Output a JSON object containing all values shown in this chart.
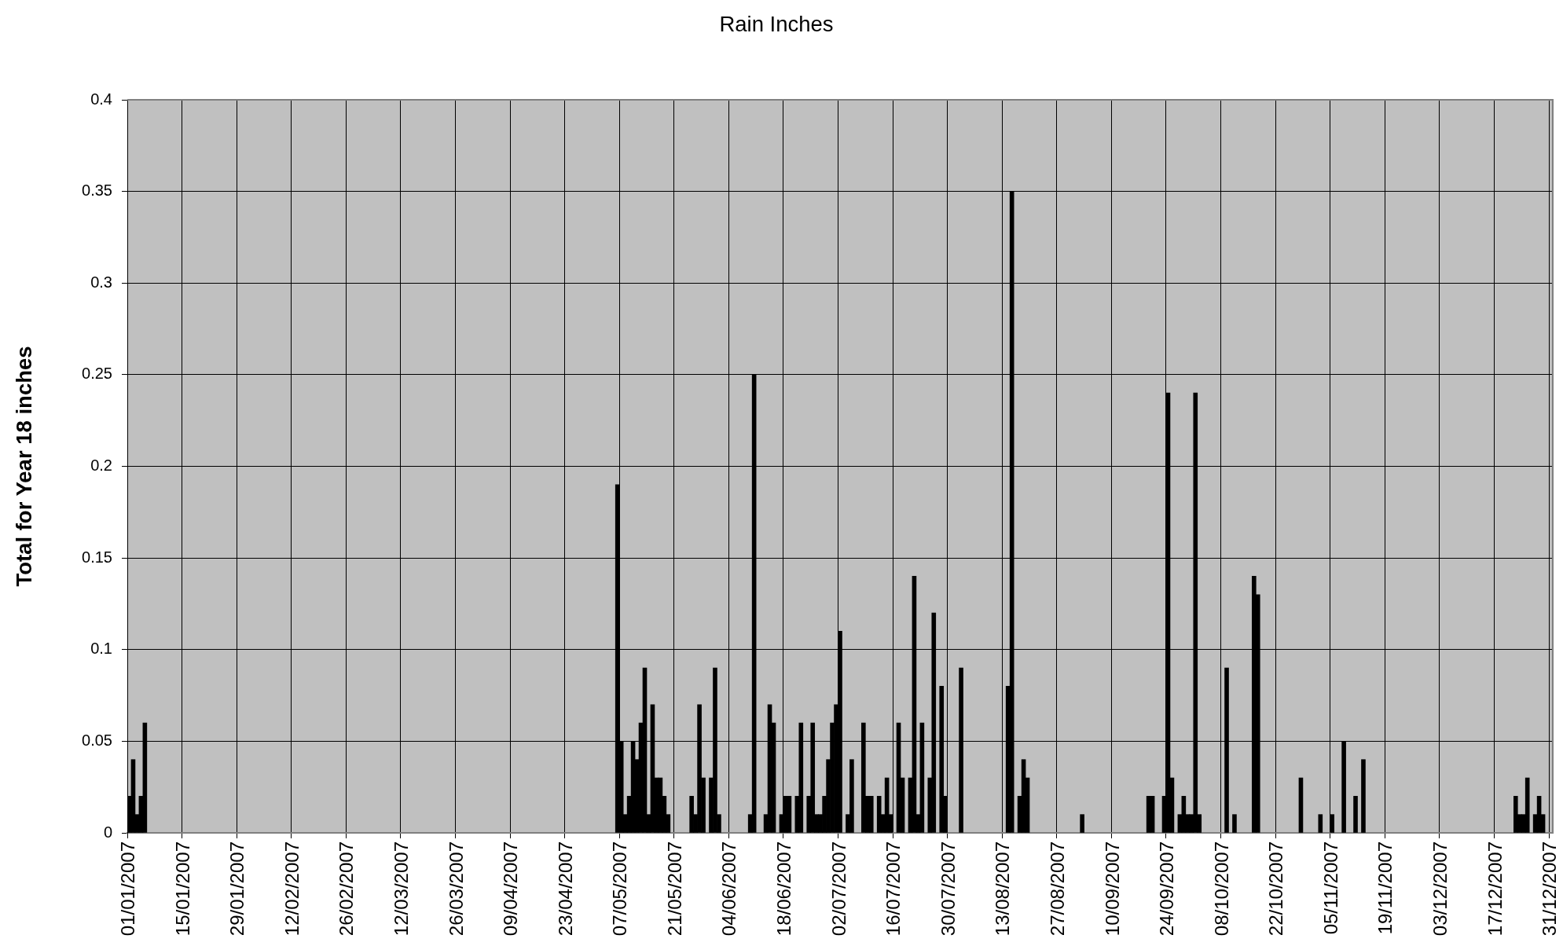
{
  "chart_data": {
    "type": "bar",
    "title": "Rain Inches",
    "ylabel": "Total for Year 18 inches",
    "categories": [
      "01/01/2007",
      null,
      null,
      null,
      null,
      null,
      null,
      null,
      null,
      null,
      null,
      null,
      null,
      null,
      "15/01/2007",
      null,
      null,
      null,
      null,
      null,
      null,
      null,
      null,
      null,
      null,
      null,
      null,
      null,
      "29/01/2007",
      null,
      null,
      null,
      null,
      null,
      null,
      null,
      null,
      null,
      null,
      null,
      null,
      null,
      "12/02/2007",
      null,
      null,
      null,
      null,
      null,
      null,
      null,
      null,
      null,
      null,
      null,
      null,
      null,
      "26/02/2007",
      null,
      null,
      null,
      null,
      null,
      null,
      null,
      null,
      null,
      null,
      null,
      null,
      null,
      "12/03/2007",
      null,
      null,
      null,
      null,
      null,
      null,
      null,
      null,
      null,
      null,
      null,
      null,
      null,
      "26/03/2007",
      null,
      null,
      null,
      null,
      null,
      null,
      null,
      null,
      null,
      null,
      null,
      null,
      null,
      "09/04/2007",
      null,
      null,
      null,
      null,
      null,
      null,
      null,
      null,
      null,
      null,
      null,
      null,
      null,
      "23/04/2007",
      null,
      null,
      null,
      null,
      null,
      null,
      null,
      null,
      null,
      null,
      null,
      null,
      null,
      "07/05/2007",
      null,
      null,
      null,
      null,
      null,
      null,
      null,
      null,
      null,
      null,
      null,
      null,
      null,
      "21/05/2007",
      null,
      null,
      null,
      null,
      null,
      null,
      null,
      null,
      null,
      null,
      null,
      null,
      null,
      "04/06/2007",
      null,
      null,
      null,
      null,
      null,
      null,
      null,
      null,
      null,
      null,
      null,
      null,
      null,
      "18/06/2007",
      null,
      null,
      null,
      null,
      null,
      null,
      null,
      null,
      null,
      null,
      null,
      null,
      null,
      "02/07/2007",
      null,
      null,
      null,
      null,
      null,
      null,
      null,
      null,
      null,
      null,
      null,
      null,
      null,
      "16/07/2007",
      null,
      null,
      null,
      null,
      null,
      null,
      null,
      null,
      null,
      null,
      null,
      null,
      null,
      "30/07/2007",
      null,
      null,
      null,
      null,
      null,
      null,
      null,
      null,
      null,
      null,
      null,
      null,
      null,
      "13/08/2007",
      null,
      null,
      null,
      null,
      null,
      null,
      null,
      null,
      null,
      null,
      null,
      null,
      null,
      "27/08/2007",
      null,
      null,
      null,
      null,
      null,
      null,
      null,
      null,
      null,
      null,
      null,
      null,
      null,
      "10/09/2007",
      null,
      null,
      null,
      null,
      null,
      null,
      null,
      null,
      null,
      null,
      null,
      null,
      null,
      "24/09/2007",
      null,
      null,
      null,
      null,
      null,
      null,
      null,
      null,
      null,
      null,
      null,
      null,
      null,
      "08/10/2007",
      null,
      null,
      null,
      null,
      null,
      null,
      null,
      null,
      null,
      null,
      null,
      null,
      null,
      "22/10/2007",
      null,
      null,
      null,
      null,
      null,
      null,
      null,
      null,
      null,
      null,
      null,
      null,
      null,
      "05/11/2007",
      null,
      null,
      null,
      null,
      null,
      null,
      null,
      null,
      null,
      null,
      null,
      null,
      null,
      "19/11/2007",
      null,
      null,
      null,
      null,
      null,
      null,
      null,
      null,
      null,
      null,
      null,
      null,
      null,
      "03/12/2007",
      null,
      null,
      null,
      null,
      null,
      null,
      null,
      null,
      null,
      null,
      null,
      null,
      null,
      "17/12/2007",
      null,
      null,
      null,
      null,
      null,
      null,
      null,
      null,
      null,
      null,
      null,
      null,
      null,
      "31/12/2007"
    ],
    "values": [
      0.02,
      0.04,
      0.01,
      0.02,
      0.06,
      null,
      null,
      null,
      null,
      null,
      null,
      null,
      null,
      null,
      null,
      null,
      null,
      null,
      null,
      null,
      null,
      null,
      null,
      null,
      null,
      null,
      null,
      null,
      null,
      null,
      null,
      null,
      null,
      null,
      null,
      null,
      null,
      null,
      null,
      null,
      null,
      null,
      null,
      null,
      null,
      null,
      null,
      null,
      null,
      null,
      null,
      null,
      null,
      null,
      null,
      null,
      null,
      null,
      null,
      null,
      null,
      null,
      null,
      null,
      null,
      null,
      null,
      null,
      null,
      null,
      null,
      null,
      null,
      null,
      null,
      null,
      null,
      null,
      null,
      null,
      null,
      null,
      null,
      null,
      null,
      null,
      null,
      null,
      null,
      null,
      null,
      null,
      null,
      null,
      null,
      null,
      null,
      null,
      null,
      null,
      null,
      null,
      null,
      null,
      null,
      null,
      null,
      null,
      null,
      null,
      null,
      null,
      null,
      null,
      null,
      null,
      null,
      null,
      null,
      null,
      null,
      null,
      null,
      null,
      null,
      0.19,
      0.05,
      0.01,
      0.02,
      0.05,
      0.04,
      0.06,
      0.09,
      0.01,
      0.07,
      0.03,
      0.03,
      0.02,
      0.01,
      null,
      null,
      null,
      null,
      null,
      0.02,
      0.01,
      0.07,
      0.03,
      null,
      0.03,
      0.09,
      0.01,
      null,
      null,
      null,
      null,
      null,
      null,
      null,
      0.01,
      0.25,
      null,
      null,
      0.01,
      0.07,
      0.06,
      null,
      0.01,
      0.02,
      0.02,
      null,
      0.02,
      0.06,
      null,
      0.02,
      0.06,
      0.01,
      0.01,
      0.02,
      0.04,
      0.06,
      0.07,
      0.11,
      null,
      0.01,
      0.04,
      null,
      null,
      0.06,
      0.02,
      0.02,
      null,
      0.02,
      0.01,
      0.03,
      0.01,
      null,
      0.06,
      0.03,
      null,
      0.03,
      0.14,
      0.01,
      0.06,
      null,
      0.03,
      0.12,
      null,
      0.08,
      0.02,
      null,
      null,
      null,
      0.09,
      null,
      null,
      null,
      null,
      null,
      null,
      null,
      null,
      null,
      null,
      null,
      0.08,
      0.35,
      null,
      0.02,
      0.04,
      0.03,
      null,
      null,
      null,
      null,
      null,
      null,
      null,
      null,
      null,
      null,
      null,
      null,
      null,
      0.01,
      null,
      null,
      null,
      null,
      null,
      null,
      null,
      null,
      null,
      null,
      null,
      null,
      null,
      null,
      null,
      null,
      0.02,
      0.02,
      null,
      null,
      0.02,
      0.24,
      0.03,
      null,
      0.01,
      0.02,
      0.01,
      0.01,
      0.24,
      0.01,
      null,
      null,
      null,
      null,
      null,
      null,
      0.09,
      null,
      0.01,
      null,
      null,
      null,
      null,
      0.14,
      0.13,
      null,
      null,
      null,
      null,
      null,
      null,
      null,
      null,
      null,
      null,
      0.03,
      null,
      null,
      null,
      null,
      0.01,
      null,
      null,
      0.01,
      null,
      null,
      0.05,
      null,
      null,
      0.02,
      null,
      0.04,
      null,
      null,
      null,
      null,
      null,
      null,
      null,
      null,
      null,
      null,
      null,
      null,
      null,
      null,
      null,
      null,
      null,
      null,
      null,
      null,
      null,
      null,
      null,
      null,
      null,
      null,
      null,
      null,
      null,
      null,
      null,
      null,
      null,
      null,
      null,
      null,
      null,
      null,
      0.02,
      0.01,
      0.01,
      0.03,
      null,
      0.01,
      0.02,
      0.01,
      null,
      null
    ],
    "color": "#000000",
    "ylim": [
      0,
      0.4
    ],
    "yticks": [
      0,
      0.05,
      0.1,
      0.15,
      0.2,
      0.25,
      0.3,
      0.35,
      0.4
    ],
    "grid": true
  }
}
